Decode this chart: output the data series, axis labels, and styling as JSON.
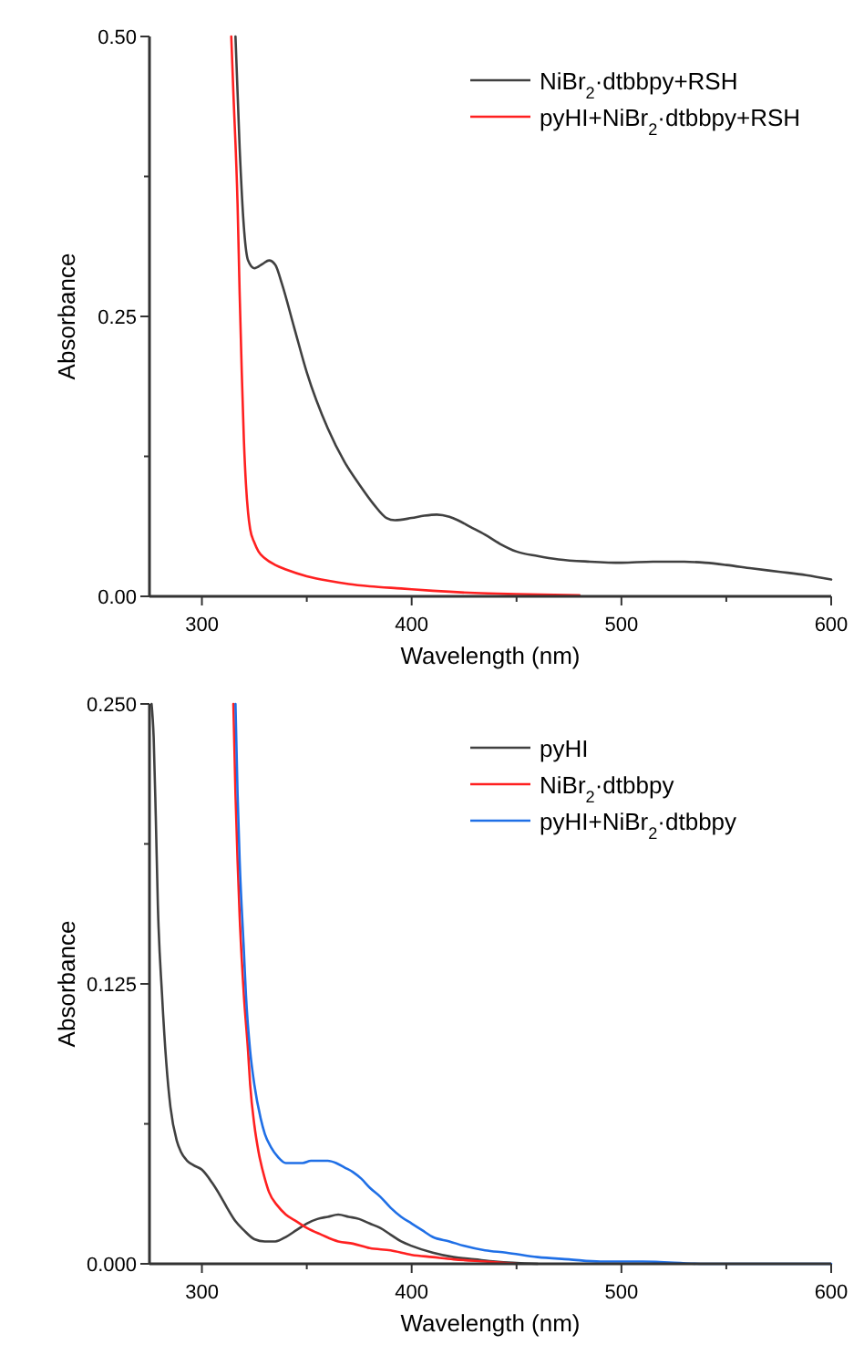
{
  "chart_data": [
    {
      "type": "line",
      "xlabel": "Wavelength (nm)",
      "ylabel": "Absorbance",
      "xlim": [
        275,
        600
      ],
      "ylim": [
        0,
        0.5
      ],
      "xticks": [
        300,
        {
          "value": 350,
          "label": null
        },
        400,
        {
          "value": 450,
          "label": null
        },
        500,
        {
          "value": 550,
          "label": null
        },
        600
      ],
      "yticks": [
        {
          "value": 0,
          "label": "0.00"
        },
        {
          "value": 0.125,
          "label": null
        },
        0.25,
        {
          "value": 0.375,
          "label": null
        },
        {
          "value": 0.5,
          "label": "0.50"
        }
      ],
      "legend": "top right",
      "series": [
        {
          "name": "NiBr$_{2}$·dtbbpy+RSH",
          "color": "#404040",
          "x": [
            316,
            318,
            320,
            322,
            325,
            329,
            332,
            335,
            338,
            344,
            350,
            360,
            368,
            375,
            382,
            388,
            392,
            400,
            406,
            412,
            418,
            422,
            428,
            435,
            442,
            450,
            460,
            470,
            485,
            500,
            515,
            530,
            540,
            550,
            562,
            575,
            588,
            600
          ],
          "values": [
            0.5,
            0.4,
            0.33,
            0.3,
            0.293,
            0.297,
            0.3,
            0.296,
            0.28,
            0.24,
            0.2,
            0.15,
            0.12,
            0.1,
            0.082,
            0.07,
            0.068,
            0.07,
            0.072,
            0.073,
            0.071,
            0.068,
            0.062,
            0.055,
            0.047,
            0.04,
            0.036,
            0.033,
            0.031,
            0.03,
            0.031,
            0.031,
            0.03,
            0.028,
            0.025,
            0.022,
            0.019,
            0.015
          ]
        },
        {
          "name": "pyHI+NiBr$_{2}$·dtbbpy+RSH",
          "color": "#ff2020",
          "x": [
            314,
            315,
            317,
            318,
            319,
            320,
            321,
            322,
            323,
            325,
            327,
            330,
            335,
            340,
            350,
            360,
            370,
            380,
            395,
            410,
            430,
            450,
            480
          ],
          "values": [
            0.5,
            0.45,
            0.35,
            0.27,
            0.2,
            0.14,
            0.1,
            0.075,
            0.06,
            0.048,
            0.04,
            0.034,
            0.028,
            0.024,
            0.018,
            0.014,
            0.011,
            0.009,
            0.007,
            0.005,
            0.003,
            0.002,
            0.001
          ]
        }
      ]
    },
    {
      "type": "line",
      "xlabel": "Wavelength (nm)",
      "ylabel": "Absorbance",
      "xlim": [
        275,
        600
      ],
      "ylim": [
        0,
        0.25
      ],
      "xticks": [
        300,
        {
          "value": 350,
          "label": null
        },
        400,
        {
          "value": 450,
          "label": null
        },
        500,
        {
          "value": 550,
          "label": null
        },
        600
      ],
      "yticks": [
        {
          "value": 0,
          "label": "0.000"
        },
        {
          "value": 0.0625,
          "label": null
        },
        0.125,
        {
          "value": 0.1875,
          "label": null
        },
        {
          "value": 0.25,
          "label": "0.250"
        }
      ],
      "legend": "top right",
      "series": [
        {
          "name": "pyHI",
          "color": "#404040",
          "x": [
            276,
            277,
            278,
            279,
            281,
            283,
            285,
            288,
            290,
            293,
            296,
            300,
            305,
            309,
            312,
            316,
            320,
            325,
            330,
            335,
            340,
            345,
            350,
            355,
            360,
            365,
            370,
            375,
            380,
            385,
            390,
            395,
            400,
            410,
            420,
            430,
            440,
            460
          ],
          "values": [
            0.25,
            0.235,
            0.2,
            0.16,
            0.12,
            0.09,
            0.07,
            0.055,
            0.05,
            0.046,
            0.044,
            0.042,
            0.036,
            0.03,
            0.025,
            0.019,
            0.015,
            0.011,
            0.01,
            0.01,
            0.012,
            0.015,
            0.018,
            0.02,
            0.021,
            0.022,
            0.021,
            0.02,
            0.018,
            0.016,
            0.013,
            0.01,
            0.008,
            0.005,
            0.003,
            0.002,
            0.001,
            0
          ]
        },
        {
          "name": "NiBr$_{2}$·dtbbpy",
          "color": "#ff2020",
          "x": [
            315,
            316,
            317,
            318,
            320,
            322,
            323,
            325,
            327,
            330,
            332,
            336,
            340,
            345,
            350,
            357,
            365,
            372,
            380,
            390,
            400,
            410,
            420,
            435,
            450
          ],
          "values": [
            0.25,
            0.21,
            0.18,
            0.155,
            0.12,
            0.095,
            0.08,
            0.062,
            0.05,
            0.038,
            0.032,
            0.026,
            0.022,
            0.019,
            0.016,
            0.013,
            0.01,
            0.009,
            0.007,
            0.006,
            0.004,
            0.003,
            0.002,
            0.001,
            0
          ]
        },
        {
          "name": "pyHI+NiBr$_{2}$·dtbbpy",
          "color": "#1f6fe6",
          "x": [
            316,
            317,
            318,
            320,
            321,
            323,
            325,
            328,
            330,
            333,
            336,
            340,
            344,
            348,
            352,
            356,
            360,
            364,
            368,
            372,
            376,
            380,
            385,
            390,
            395,
            400,
            405,
            410,
            418,
            425,
            435,
            445,
            460,
            475,
            490,
            510,
            540,
            570,
            600
          ],
          "values": [
            0.25,
            0.21,
            0.18,
            0.14,
            0.12,
            0.095,
            0.08,
            0.065,
            0.058,
            0.052,
            0.048,
            0.045,
            0.045,
            0.045,
            0.046,
            0.046,
            0.046,
            0.045,
            0.043,
            0.041,
            0.038,
            0.034,
            0.03,
            0.025,
            0.021,
            0.018,
            0.015,
            0.012,
            0.01,
            0.008,
            0.006,
            0.005,
            0.003,
            0.002,
            0.001,
            0.001,
            0,
            0,
            0
          ]
        }
      ]
    }
  ]
}
